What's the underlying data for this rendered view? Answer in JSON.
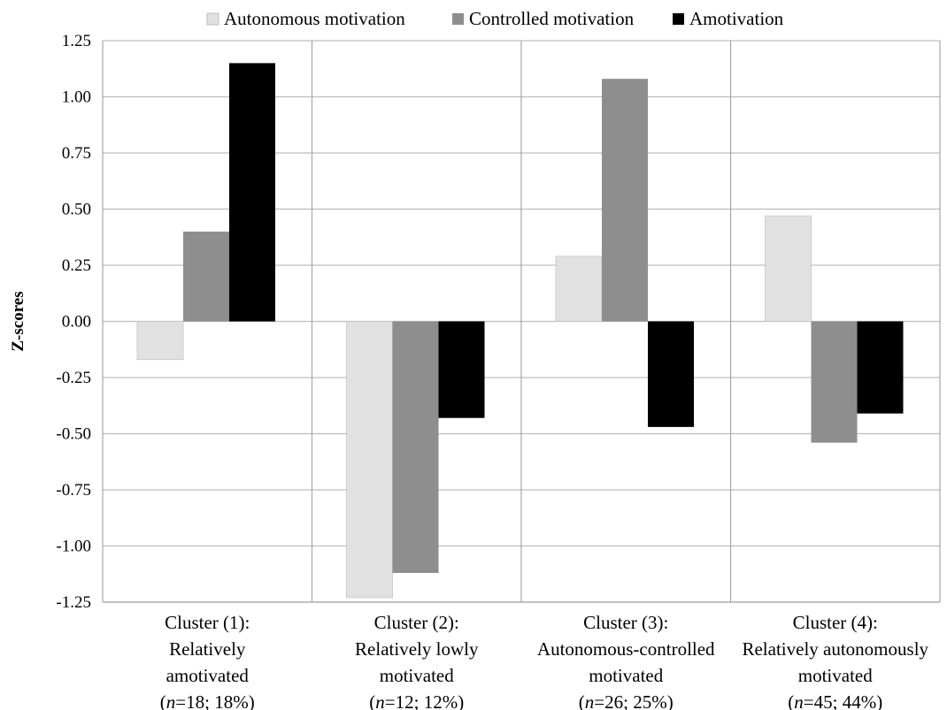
{
  "chart_data": {
    "type": "bar",
    "ylabel": "Z-scores",
    "xlabel": "",
    "ylim": [
      -1.25,
      1.25
    ],
    "y_ticks": [
      "1.25",
      "1.00",
      "0.75",
      "0.50",
      "0.25",
      "0.00",
      "-0.25",
      "-0.50",
      "-0.75",
      "-1.00",
      "-1.25"
    ],
    "grid": true,
    "legend_position": "top",
    "categories": [
      {
        "lines": [
          "Cluster (1):",
          "Relatively",
          "amotivated"
        ],
        "n_prefix": "n",
        "n_suffix": "=18; 18%"
      },
      {
        "lines": [
          "Cluster (2):",
          "Relatively lowly",
          "motivated"
        ],
        "n_prefix": "n",
        "n_suffix": "=12; 12%"
      },
      {
        "lines": [
          "Cluster (3):",
          "Autonomous-controlled",
          "motivated"
        ],
        "n_prefix": "n",
        "n_suffix": "=26; 25%"
      },
      {
        "lines": [
          "Cluster (4):",
          "Relatively autonomously",
          "motivated"
        ],
        "n_prefix": "n",
        "n_suffix": "=45; 44%"
      }
    ],
    "series": [
      {
        "name": "Autonomous motivation",
        "color": "#e1e1e1",
        "values": [
          -0.17,
          -1.23,
          0.29,
          0.47
        ]
      },
      {
        "name": "Controlled motivation",
        "color": "#8e8e8e",
        "values": [
          0.4,
          -1.12,
          1.08,
          -0.54
        ]
      },
      {
        "name": "Amotivation",
        "color": "#000000",
        "values": [
          1.15,
          -0.43,
          -0.47,
          -0.41
        ]
      }
    ]
  }
}
